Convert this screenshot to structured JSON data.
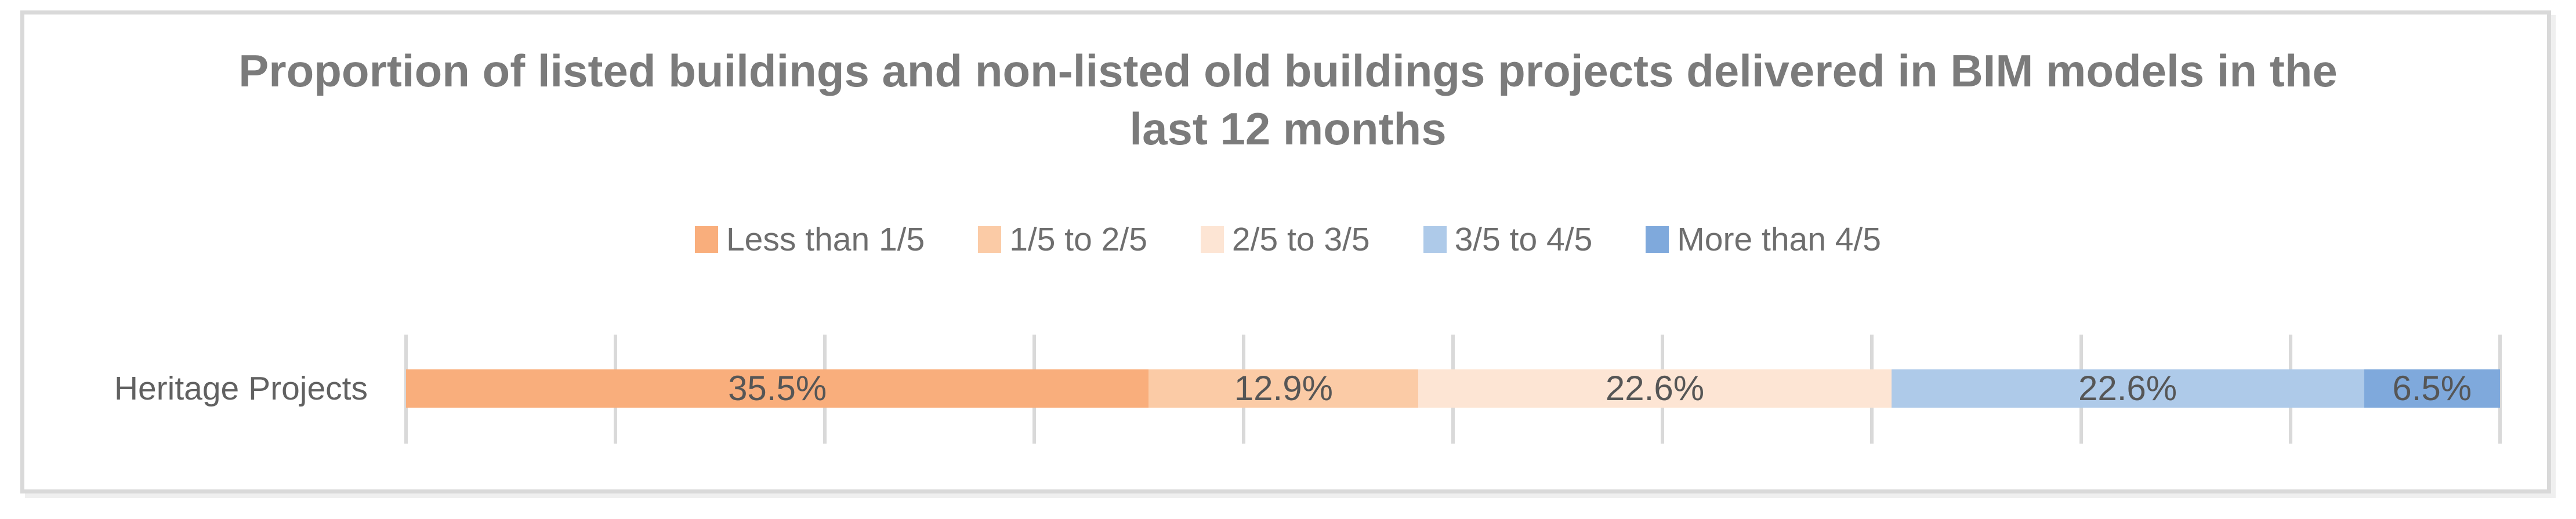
{
  "chart_data": {
    "type": "bar",
    "orientation": "horizontal-stacked",
    "title": "Proportion of listed buildings and non-listed old buildings projects delivered in BIM models in the last 12 months",
    "title_lines": [
      "Proportion of listed buildings and non-listed old buildings projects delivered in BIM models in the",
      "last 12 months"
    ],
    "categories": [
      "Heritage Projects"
    ],
    "series": [
      {
        "name": "Less than 1/5",
        "values": [
          35.5
        ],
        "data_label": "35.5%",
        "color": "#F9AE7C"
      },
      {
        "name": "1/5 to 2/5",
        "values": [
          12.9
        ],
        "data_label": "12.9%",
        "color": "#FBCBA6"
      },
      {
        "name": "2/5 to 3/5",
        "values": [
          22.6
        ],
        "data_label": "22.6%",
        "color": "#FDE5D4"
      },
      {
        "name": "3/5 to 4/5",
        "values": [
          22.6
        ],
        "data_label": "22.6%",
        "color": "#AECAE9"
      },
      {
        "name": "More than 4/5",
        "values": [
          6.5
        ],
        "data_label": "6.5%",
        "color": "#7FA9DC"
      }
    ],
    "xlabel": "",
    "ylabel": "",
    "x_axis": {
      "min": 0,
      "max": 100,
      "unit": "%",
      "grid": true,
      "grid_step": 10,
      "tick_labels_visible": false
    },
    "legend_position": "top",
    "grid_on": true
  },
  "colors": {
    "frame_border": "#D9D9D9",
    "gridline": "#D9D9D9",
    "title_text": "#7B7B7B",
    "legend_text": "#6E6E6E",
    "category_text": "#616161",
    "data_label_text": "#565656",
    "background": "#FFFFFF"
  }
}
